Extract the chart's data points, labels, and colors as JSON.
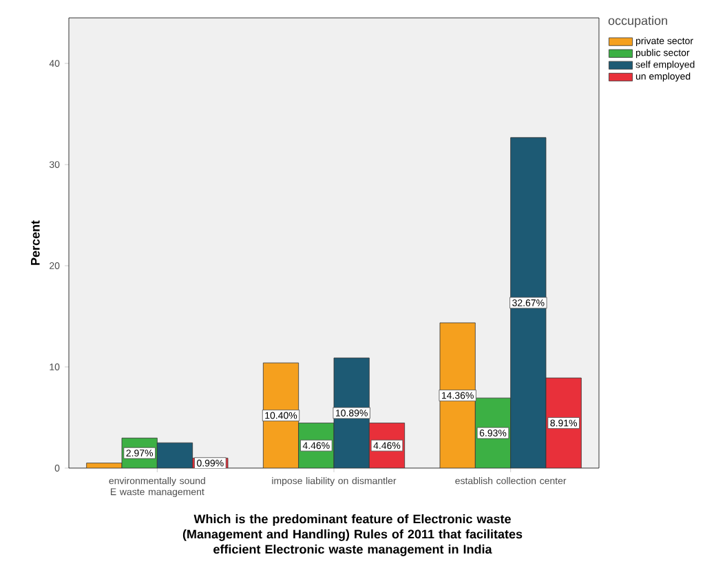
{
  "chart_data": {
    "type": "bar",
    "xlabel": "Which is the  predominant feature of Electronic waste (Management and Handling) Rules of 2011 that facilitates efficient Electronic waste management in India",
    "ylabel": "Percent",
    "legend_title": "occupation",
    "legend": "top right",
    "categories": [
      "environmentally sound E waste management",
      "impose liability on dismantler",
      "establish collection center"
    ],
    "series": [
      {
        "name": "private sector",
        "color": "#f5a01e",
        "values": [
          0.5,
          10.4,
          14.36
        ],
        "value_labels": [
          null,
          "10.40%",
          "14.36%"
        ]
      },
      {
        "name": "public sector",
        "color": "#3cb044",
        "values": [
          2.97,
          4.46,
          6.93
        ],
        "value_labels": [
          "2.97%",
          "4.46%",
          "6.93%"
        ]
      },
      {
        "name": "self employed",
        "color": "#1d5a74",
        "values": [
          2.5,
          10.89,
          32.67
        ],
        "value_labels": [
          null,
          "10.89%",
          "32.67%"
        ]
      },
      {
        "name": "un employed",
        "color": "#e8303a",
        "values": [
          0.99,
          4.46,
          8.91
        ],
        "value_labels": [
          "0.99%",
          "4.46%",
          "8.91%"
        ]
      }
    ],
    "ylim": [
      0,
      44.5
    ],
    "yticks": [
      0,
      10,
      20,
      30,
      40
    ]
  }
}
